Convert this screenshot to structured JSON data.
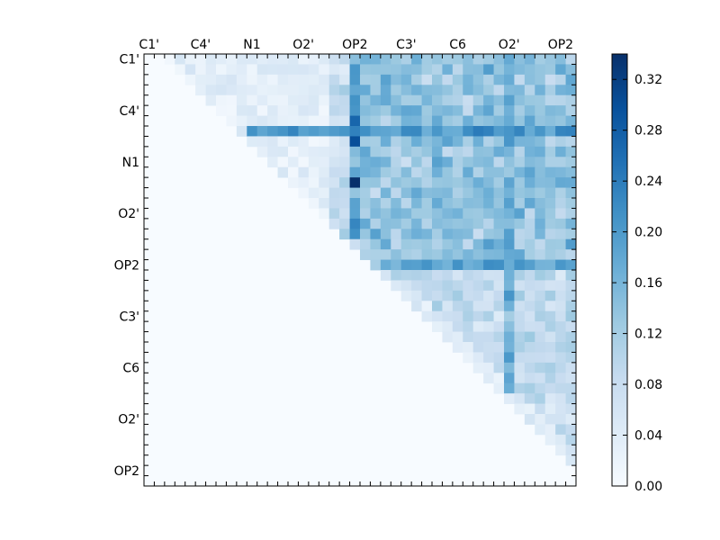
{
  "chart_data": {
    "type": "heatmap",
    "grid_size": 42,
    "x_tick_labels": [
      "C1'",
      "C4'",
      "N1",
      "O2'",
      "OP2",
      "C3'",
      "C6",
      "O2'",
      "OP2"
    ],
    "y_tick_labels": [
      "C1'",
      "C4'",
      "N1",
      "O2'",
      "OP2",
      "C3'",
      "C6",
      "O2'",
      "OP2"
    ],
    "tick_label_every": 5,
    "colorbar": {
      "vmin": 0.0,
      "vmax": 0.34,
      "tick_values": [
        0.0,
        0.04,
        0.08,
        0.12,
        0.16,
        0.2,
        0.24,
        0.28,
        0.32
      ],
      "tick_labels": [
        "0.00",
        "0.04",
        "0.08",
        "0.12",
        "0.16",
        "0.20",
        "0.24",
        "0.28",
        "0.32"
      ],
      "colormap": "Blues",
      "color_min": "#f7fbff",
      "color_max": "#08306b"
    },
    "upper_triangle_only": true,
    "highlight_rows": [
      {
        "row": 7,
        "value": 0.22
      },
      {
        "row": 20,
        "value": 0.2
      }
    ],
    "highlight_cols": [
      {
        "col": 20,
        "value": 0.22
      },
      {
        "col": 35,
        "value": 0.2
      }
    ],
    "peak_cells": [
      {
        "row": 12,
        "col": 20,
        "value": 0.34
      },
      {
        "row": 8,
        "col": 20,
        "value": 0.3
      },
      {
        "row": 6,
        "col": 20,
        "value": 0.27
      }
    ],
    "title": "",
    "xlabel": "",
    "ylabel": ""
  }
}
